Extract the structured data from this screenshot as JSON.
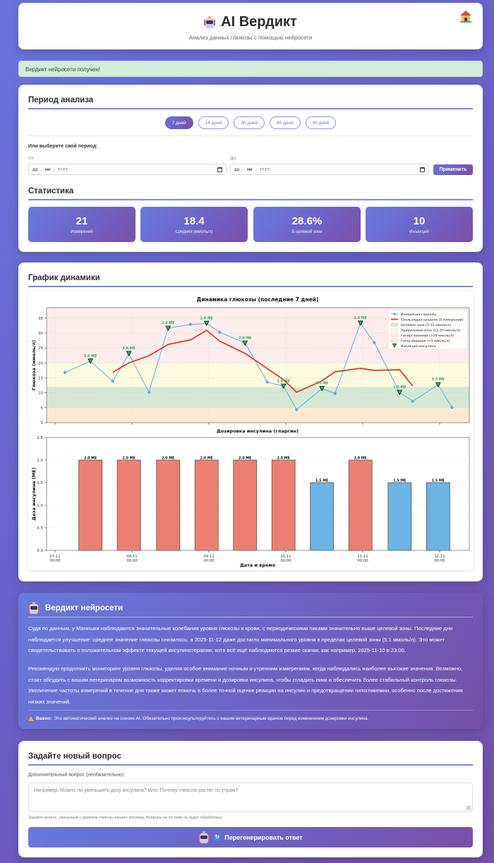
{
  "header": {
    "title": "AI Вердикт",
    "subtitle": "Анализ данных глюкозы с помощью нейросети",
    "home_icon": "house-icon",
    "logo_icon": "robot-icon"
  },
  "alert": {
    "text": "Вердикт нейросети получен!"
  },
  "period": {
    "title": "Период анализа",
    "presets": [
      {
        "label": "7 дней",
        "active": true
      },
      {
        "label": "14 дней",
        "active": false
      },
      {
        "label": "30 дней",
        "active": false
      },
      {
        "label": "60 дней",
        "active": false
      },
      {
        "label": "90 дней",
        "active": false
      }
    ],
    "custom_label": "Или выберите свой период:",
    "from_label": "От:",
    "to_label": "До:",
    "from_placeholder": "дд . мм . гггг",
    "to_placeholder": "дд . мм . гггг",
    "apply_label": "Применить"
  },
  "stats": {
    "title": "Статистика",
    "items": [
      {
        "value": "21",
        "label": "Измерений"
      },
      {
        "value": "18.4",
        "label": "Средняя (ммоль/л)"
      },
      {
        "value": "28.6%",
        "label": "В целевой зоне"
      },
      {
        "value": "10",
        "label": "Инъекций"
      }
    ]
  },
  "chart_section": {
    "title": "График динамики"
  },
  "chart_data": [
    {
      "type": "line",
      "title": "Динамика глюкозы (последние 7 дней)",
      "xlabel": "",
      "ylabel": "Глюкоза (ммоль/л)",
      "ylim": [
        0,
        38.5
      ],
      "xlim_days": [
        -0.11,
        5.39
      ],
      "x_unit": "days since 07.11 00:00",
      "yticks": [
        0,
        5,
        10,
        15,
        20,
        25,
        30,
        35
      ],
      "xtick_days": [
        0,
        1,
        2,
        3,
        4,
        5
      ],
      "grid": true,
      "zones": [
        {
          "name": "Гипогликемия (<5 ммоль/л)",
          "from": 0,
          "to": 5,
          "color": "#fde9cf"
        },
        {
          "name": "Целевая зона (5-12 ммоль/л)",
          "from": 5,
          "to": 12,
          "color": "#d5e8d4"
        },
        {
          "name": "Приемлемая зона (12-20 ммоль/л)",
          "from": 12,
          "to": 20,
          "color": "#fdfbdf"
        },
        {
          "name": "Гипергликемия (>20 ммоль/л)",
          "from": 20,
          "to": 38.5,
          "color": "#fcecec"
        }
      ],
      "series": [
        {
          "name": "Измерения глюкозы",
          "color": "#5dade2",
          "x": [
            0.13,
            0.46,
            0.75,
            0.96,
            1.22,
            1.47,
            1.76,
            1.97,
            2.14,
            2.47,
            2.76,
            2.97,
            3.14,
            3.47,
            3.64,
            3.97,
            4.15,
            4.48,
            4.65,
            4.98,
            5.16
          ],
          "values": [
            16.8,
            20.6,
            13.9,
            23.1,
            10.2,
            31.6,
            32.9,
            33.2,
            30.3,
            26.6,
            13.6,
            12.2,
            4.4,
            11.4,
            9.8,
            33.3,
            26.8,
            10.1,
            7.2,
            12.7,
            5.1
          ]
        },
        {
          "name": "Скользящая средняя (5 измерений)",
          "color": "#e23a2e",
          "x": [
            0.75,
            0.96,
            1.22,
            1.47,
            1.76,
            1.97,
            2.14,
            2.47,
            2.76,
            2.97,
            3.14,
            3.47,
            3.64,
            3.97,
            4.15,
            4.48,
            4.65
          ],
          "values": [
            16.9,
            20.0,
            22.4,
            26.2,
            27.7,
            30.9,
            27.3,
            23.2,
            18.1,
            14.4,
            10.2,
            14.0,
            17.0,
            18.2,
            17.5,
            17.7,
            12.3
          ]
        }
      ],
      "injections": {
        "name": "Инъекция инсулина",
        "color": "#27ae60",
        "points": [
          {
            "x": 0.46,
            "y": 20.6,
            "label": "2.0 МЕ"
          },
          {
            "x": 0.96,
            "y": 23.1,
            "label": "2.0 МЕ"
          },
          {
            "x": 1.47,
            "y": 31.6,
            "label": "2.0 МЕ"
          },
          {
            "x": 1.97,
            "y": 33.2,
            "label": "2.0 МЕ"
          },
          {
            "x": 2.47,
            "y": 26.6,
            "label": "2.0 МЕ"
          },
          {
            "x": 2.97,
            "y": 12.2,
            "label": "2.0 МЕ"
          },
          {
            "x": 3.47,
            "y": 11.4,
            "label": "1.5 МЕ"
          },
          {
            "x": 3.97,
            "y": 33.3,
            "label": "2.0 МЕ"
          },
          {
            "x": 4.48,
            "y": 10.1,
            "label": "1.5 МЕ"
          },
          {
            "x": 4.98,
            "y": 12.7,
            "label": "1.5 МЕ"
          }
        ]
      },
      "legend": [
        "Измерения глюкозы",
        "Скользящая средняя (5 измерений)",
        "Целевая зона (5-12 ммоль/л)",
        "Приемлемая зона (12-20 ммоль/л)",
        "Гипергликемия (>20 ммоль/л)",
        "Гипогликемия (<5 ммоль/л)",
        "Инъекция инсулина"
      ],
      "legend_position": "top-right"
    },
    {
      "type": "bar",
      "title": "Дозировка инсулина (гларгин)",
      "xlabel": "Дата и время",
      "ylabel": "Доза инсулина (МЕ)",
      "ylim": [
        0,
        2.5
      ],
      "yticks": [
        "0.0",
        "0.5",
        "1.0",
        "1.5",
        "2.0",
        "2.5"
      ],
      "xtick_labels": [
        {
          "day": 0,
          "date": "07.11",
          "time": "00:00"
        },
        {
          "day": 1,
          "date": "08.11",
          "time": "00:00"
        },
        {
          "day": 2,
          "date": "09.11",
          "time": "00:00"
        },
        {
          "day": 3,
          "date": "10.11",
          "time": "00:00"
        },
        {
          "day": 4,
          "date": "11.11",
          "time": "00:00"
        },
        {
          "day": 5,
          "date": "12.11",
          "time": "00:00"
        }
      ],
      "bar_x_days": [
        0.46,
        0.96,
        1.47,
        1.97,
        2.47,
        2.97,
        3.47,
        3.97,
        4.48,
        4.98
      ],
      "values": [
        2.0,
        2.0,
        2.0,
        2.0,
        2.0,
        2.0,
        1.5,
        2.0,
        1.5,
        1.5
      ],
      "labels": [
        "2.0 МЕ",
        "2.0 МЕ",
        "2.0 МЕ",
        "2.0 МЕ",
        "2.0 МЕ",
        "2.0 МЕ",
        "1.5 МЕ",
        "2.0 МЕ",
        "1.5 МЕ",
        "1.5 МЕ"
      ],
      "colors": {
        "2.0": "#ec7f72",
        "1.5": "#6cb3e3"
      },
      "grid": true
    }
  ],
  "verdict": {
    "title": "Вердикт нейросети",
    "paragraphs": [
      "Судя по данным, у Манишки наблюдаются значительные колебания уровня глюкозы в крови, с периодическими пиками значительно выше целевой зоны. Последние дни наблюдается улучшение: среднее значение глюкозы снизилось, а 2025-11-12 даже достигло минимального уровня в пределах целевой зоны (5.1 ммоль/л). Это может свидетельствовать о положительном эффекте текущей инсулинотерапии, хотя всё ещё наблюдаются резкие скачки, как например, 2025-11-10 в 23:00.",
      "Рекомендую продолжить мониторинг уровня глюкозы, уделяя особое внимание ночным и утренним измерениям, когда наблюдались наиболее высокие значения. Возможно, стоит обсудить с вашим ветеринаром возможность корректировки времени и дозировки инсулина, чтобы сгладить пики и обеспечить более стабильный контроль глюкозы. Увеличение частоты измерений в течение дня также может помочь в более точной оценке реакции на инсулин и предотвращении гипогликемии, особенно после достижения низких значений."
    ],
    "warning_label": "Важно:",
    "warning_text": "Это автоматический анализ на основе AI. Обязательно проконсультируйтесь с вашим ветеринарным врачом перед изменением дозировки инсулина.",
    "warning_icon": "warning-icon"
  },
  "question": {
    "title": "Задайте новый вопрос",
    "field_label": "Дополнительный вопрос (необязательно):",
    "placeholder": "Например: Можно ли уменьшить дозу инсулина? Или: Почему глюкоза растет по утрам?",
    "value": "",
    "hint": "Задайте вопрос, связанный с уровнем глюкозы вашего питомца. Вопросы не по теме не будут обработаны.",
    "regen_label": "Перегенерировать ответ",
    "refresh_icon": "refresh-icon"
  }
}
